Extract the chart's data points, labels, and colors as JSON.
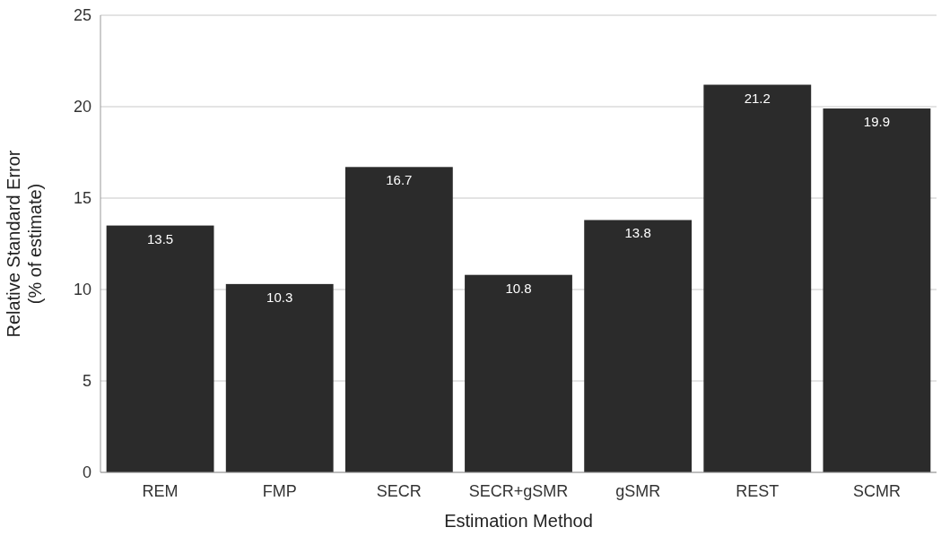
{
  "chart_data": {
    "type": "bar",
    "xlabel": "Estimation Method",
    "ylabel": "Relative Standard Error\n(% of estimate)",
    "categories": [
      "REM",
      "FMP",
      "SECR",
      "SECR+gSMR",
      "gSMR",
      "REST",
      "SCMR"
    ],
    "values": [
      13.5,
      10.3,
      16.7,
      10.8,
      13.8,
      21.2,
      19.9
    ],
    "color": "#2b2b2b",
    "ylim": [
      0,
      25
    ],
    "yticks": [
      0,
      5,
      10,
      15,
      20,
      25
    ],
    "grid": "y",
    "data_labels": true
  }
}
